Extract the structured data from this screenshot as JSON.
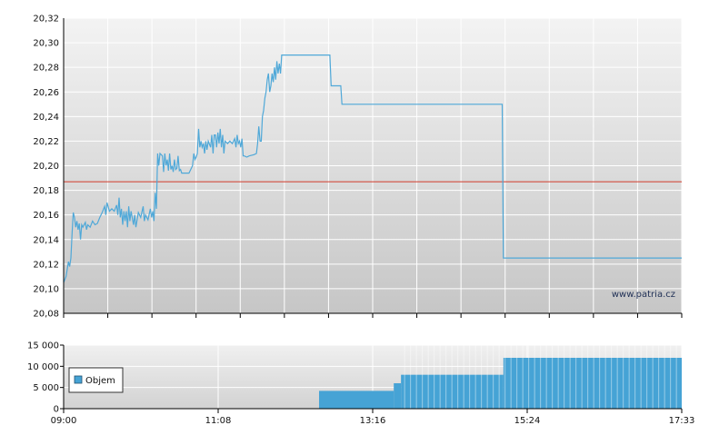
{
  "watermark": "www.patria.cz",
  "colors": {
    "price_line": "#4fa8d8",
    "reference_line": "#d03a2a",
    "volume_bar": "#46a3d5",
    "grid": "#ffffff",
    "plot_bg_top": "#f2f2f2",
    "plot_bg_bottom": "#c8c8c8"
  },
  "chart_data": [
    {
      "type": "line",
      "ylim": [
        20.08,
        20.32
      ],
      "y_tick_labels": [
        "20,32",
        "20,30",
        "20,28",
        "20,26",
        "20,24",
        "20,22",
        "20,20",
        "20,18",
        "20,16",
        "20,14",
        "20,12",
        "20,10",
        "20,08"
      ],
      "y_ticks": [
        20.32,
        20.3,
        20.28,
        20.26,
        20.24,
        20.22,
        20.2,
        20.18,
        20.16,
        20.14,
        20.12,
        20.1,
        20.08
      ],
      "x_range": [
        "09:00",
        "17:33"
      ],
      "reference_value": 20.187,
      "grid": true,
      "series": [
        {
          "points": [
            [
              "09:00",
              20.105
            ],
            [
              "09:02",
              20.11
            ],
            [
              "09:04",
              20.122
            ],
            [
              "09:05",
              20.118
            ],
            [
              "09:06",
              20.125
            ],
            [
              "09:07",
              20.145
            ],
            [
              "09:08",
              20.162
            ],
            [
              "09:09",
              20.158
            ],
            [
              "09:10",
              20.15
            ],
            [
              "09:11",
              20.155
            ],
            [
              "09:12",
              20.148
            ],
            [
              "09:13",
              20.153
            ],
            [
              "09:14",
              20.14
            ],
            [
              "09:15",
              20.152
            ],
            [
              "09:16",
              20.15
            ],
            [
              "09:18",
              20.154
            ],
            [
              "09:19",
              20.148
            ],
            [
              "09:20",
              20.152
            ],
            [
              "09:22",
              20.15
            ],
            [
              "09:24",
              20.155
            ],
            [
              "09:26",
              20.152
            ],
            [
              "09:28",
              20.153
            ],
            [
              "09:30",
              20.158
            ],
            [
              "09:32",
              20.162
            ],
            [
              "09:34",
              20.167
            ],
            [
              "09:35",
              20.16
            ],
            [
              "09:36",
              20.17
            ],
            [
              "09:38",
              20.163
            ],
            [
              "09:40",
              20.165
            ],
            [
              "09:42",
              20.163
            ],
            [
              "09:44",
              20.168
            ],
            [
              "09:45",
              20.16
            ],
            [
              "09:46",
              20.174
            ],
            [
              "09:47",
              20.158
            ],
            [
              "09:48",
              20.165
            ],
            [
              "09:49",
              20.152
            ],
            [
              "09:50",
              20.163
            ],
            [
              "09:51",
              20.155
            ],
            [
              "09:52",
              20.163
            ],
            [
              "09:53",
              20.15
            ],
            [
              "09:54",
              20.167
            ],
            [
              "09:55",
              20.155
            ],
            [
              "09:56",
              20.163
            ],
            [
              "09:58",
              20.152
            ],
            [
              "09:59",
              20.16
            ],
            [
              "10:00",
              20.15
            ],
            [
              "10:02",
              20.162
            ],
            [
              "10:04",
              20.158
            ],
            [
              "10:06",
              20.167
            ],
            [
              "10:07",
              20.155
            ],
            [
              "10:08",
              20.16
            ],
            [
              "10:10",
              20.156
            ],
            [
              "10:12",
              20.165
            ],
            [
              "10:13",
              20.158
            ],
            [
              "10:14",
              20.163
            ],
            [
              "10:15",
              20.155
            ],
            [
              "10:16",
              20.178
            ],
            [
              "10:17",
              20.165
            ],
            [
              "10:18",
              20.21
            ],
            [
              "10:19",
              20.2
            ],
            [
              "10:20",
              20.21
            ],
            [
              "10:22",
              20.208
            ],
            [
              "10:23",
              20.195
            ],
            [
              "10:24",
              20.21
            ],
            [
              "10:25",
              20.2
            ],
            [
              "10:26",
              20.205
            ],
            [
              "10:27",
              20.196
            ],
            [
              "10:28",
              20.21
            ],
            [
              "10:29",
              20.197
            ],
            [
              "10:30",
              20.2
            ],
            [
              "10:31",
              20.195
            ],
            [
              "10:32",
              20.205
            ],
            [
              "10:33",
              20.197
            ],
            [
              "10:34",
              20.198
            ],
            [
              "10:35",
              20.208
            ],
            [
              "10:36",
              20.196
            ],
            [
              "10:37",
              20.197
            ],
            [
              "10:38",
              20.194
            ],
            [
              "10:40",
              20.194
            ],
            [
              "10:44",
              20.194
            ],
            [
              "10:46",
              20.198
            ],
            [
              "10:47",
              20.2
            ],
            [
              "10:48",
              20.21
            ],
            [
              "10:49",
              20.205
            ],
            [
              "10:50",
              20.207
            ],
            [
              "10:51",
              20.21
            ],
            [
              "10:52",
              20.23
            ],
            [
              "10:53",
              20.215
            ],
            [
              "10:54",
              20.22
            ],
            [
              "10:55",
              20.215
            ],
            [
              "10:56",
              20.218
            ],
            [
              "10:57",
              20.21
            ],
            [
              "10:58",
              20.22
            ],
            [
              "10:59",
              20.213
            ],
            [
              "11:00",
              20.22
            ],
            [
              "11:02",
              20.215
            ],
            [
              "11:03",
              20.225
            ],
            [
              "11:04",
              20.21
            ],
            [
              "11:05",
              20.225
            ],
            [
              "11:06",
              20.225
            ],
            [
              "11:07",
              20.215
            ],
            [
              "11:08",
              20.227
            ],
            [
              "11:09",
              20.218
            ],
            [
              "11:10",
              20.23
            ],
            [
              "11:11",
              20.215
            ],
            [
              "11:12",
              20.225
            ],
            [
              "11:13",
              20.21
            ],
            [
              "11:14",
              20.22
            ],
            [
              "11:16",
              20.218
            ],
            [
              "11:18",
              20.22
            ],
            [
              "11:20",
              20.218
            ],
            [
              "11:22",
              20.222
            ],
            [
              "11:23",
              20.215
            ],
            [
              "11:24",
              20.225
            ],
            [
              "11:25",
              20.218
            ],
            [
              "11:26",
              20.22
            ],
            [
              "11:27",
              20.215
            ],
            [
              "11:28",
              20.222
            ],
            [
              "11:29",
              20.208
            ],
            [
              "11:30",
              20.208
            ],
            [
              "11:32",
              20.207
            ],
            [
              "11:34",
              20.208
            ],
            [
              "11:38",
              20.209
            ],
            [
              "11:40",
              20.21
            ],
            [
              "11:41",
              20.218
            ],
            [
              "11:42",
              20.232
            ],
            [
              "11:43",
              20.22
            ],
            [
              "11:44",
              20.22
            ],
            [
              "11:45",
              20.24
            ],
            [
              "11:46",
              20.245
            ],
            [
              "11:47",
              20.255
            ],
            [
              "11:48",
              20.26
            ],
            [
              "11:49",
              20.27
            ],
            [
              "11:50",
              20.275
            ],
            [
              "11:51",
              20.26
            ],
            [
              "11:52",
              20.265
            ],
            [
              "11:53",
              20.275
            ],
            [
              "11:54",
              20.268
            ],
            [
              "11:55",
              20.28
            ],
            [
              "11:56",
              20.27
            ],
            [
              "11:57",
              20.285
            ],
            [
              "11:58",
              20.275
            ],
            [
              "11:59",
              20.283
            ],
            [
              "12:00",
              20.275
            ],
            [
              "12:01",
              20.29
            ],
            [
              "12:02",
              20.29
            ],
            [
              "12:10",
              20.29
            ],
            [
              "12:30",
              20.29
            ],
            [
              "12:41",
              20.29
            ],
            [
              "12:42",
              20.265
            ],
            [
              "12:50",
              20.265
            ],
            [
              "12:51",
              20.25
            ],
            [
              "13:20",
              20.25
            ],
            [
              "14:00",
              20.25
            ],
            [
              "14:40",
              20.25
            ],
            [
              "15:04",
              20.25
            ],
            [
              "15:05",
              20.125
            ],
            [
              "16:00",
              20.125
            ],
            [
              "17:33",
              20.125
            ]
          ]
        }
      ]
    },
    {
      "type": "bar",
      "ylim": [
        0,
        15000
      ],
      "y_tick_labels": [
        "15 000",
        "10 000",
        "5 000",
        "0"
      ],
      "y_ticks": [
        15000,
        10000,
        5000,
        0
      ],
      "x_tick_labels": [
        "09:00",
        "11:08",
        "13:16",
        "15:24",
        "17:33"
      ],
      "legend": "Objem",
      "series": [
        {
          "name": "Objem",
          "steps": [
            {
              "from": "12:32",
              "to": "13:34",
              "value": 4200
            },
            {
              "from": "13:34",
              "to": "13:40",
              "value": 6000
            },
            {
              "from": "13:40",
              "to": "15:05",
              "value": 8000
            },
            {
              "from": "15:05",
              "to": "17:33",
              "value": 12000
            }
          ]
        }
      ]
    }
  ]
}
